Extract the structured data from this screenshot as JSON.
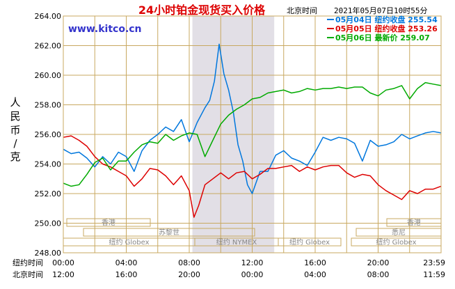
{
  "title": "24小时铂金现货买入价格",
  "header_timezone": "北京时间",
  "header_timestamp": "2021年05月07日10时55分",
  "watermark": "www.kitco.cn",
  "ylabel": "人民币/克",
  "row_label_ny": "纽约时间",
  "row_label_bj": "北京时间",
  "legend": [
    {
      "label": "05月04日 纽约收盘 255.54",
      "color": "#0077dd"
    },
    {
      "label": "05月05日 纽约收盘 253.26",
      "color": "#dd0000"
    },
    {
      "label": "05月06日    最新价 259.07",
      "color": "#00aa00"
    }
  ],
  "market_labels": {
    "hk_left": "香港",
    "paris": "苏黎世",
    "globex_left": "纽约 Globex",
    "nymex": "纽约 NYMEX",
    "globex_right": "纽约 Globex",
    "hk_right": "香港",
    "sydney": "悉尼",
    "globex_far_right": "纽约 Globex"
  },
  "colors": {
    "grid": "#c8a860",
    "shade": "#e2dfe6",
    "title": "#dd0000",
    "watermark": "#3333cc",
    "axis_text": "#000000"
  },
  "chart_data": {
    "type": "line",
    "ylim": [
      248,
      264
    ],
    "xlim_hours": [
      0,
      24
    ],
    "y_ticks": [
      "248.00",
      "250.00",
      "252.00",
      "254.00",
      "256.00",
      "258.00",
      "260.00",
      "262.00",
      "264.00"
    ],
    "x_ticks_ny": [
      "00:00",
      "04:00",
      "08:00",
      "12:00",
      "16:00",
      "20:00",
      "23:59"
    ],
    "x_ticks_bj": [
      "12:00",
      "16:00",
      "20:00",
      "00:00",
      "04:00",
      "08:00",
      "11:59"
    ],
    "x_tick_hours": [
      0,
      4,
      8,
      12,
      16,
      20,
      24
    ],
    "shaded_hours": [
      8.2,
      13.4
    ],
    "series": [
      {
        "name": "05月04日",
        "color": "#0077dd",
        "x": [
          0,
          0.5,
          1,
          1.5,
          2,
          2.5,
          3,
          3.5,
          4,
          4.5,
          5,
          5.5,
          6,
          6.5,
          7,
          7.5,
          8,
          8.5,
          9,
          9.3,
          9.6,
          9.9,
          10.2,
          10.5,
          10.8,
          11.1,
          11.4,
          11.7,
          12,
          12.5,
          13,
          13.5,
          14,
          14.5,
          15,
          15.5,
          16,
          16.5,
          17,
          17.5,
          18,
          18.5,
          19,
          19.5,
          20,
          20.5,
          21,
          21.5,
          22,
          22.5,
          23,
          23.5,
          24
        ],
        "y": [
          255.0,
          254.7,
          254.8,
          254.4,
          253.8,
          254.5,
          254.0,
          254.8,
          254.5,
          253.5,
          254.9,
          255.6,
          256.0,
          256.5,
          256.2,
          257.0,
          255.5,
          256.8,
          257.8,
          258.3,
          259.6,
          262.1,
          260.1,
          259.0,
          257.5,
          255.3,
          254.2,
          252.6,
          252.0,
          253.5,
          253.5,
          254.6,
          254.9,
          254.4,
          254.2,
          253.9,
          254.8,
          255.8,
          255.6,
          255.8,
          255.7,
          255.4,
          254.2,
          255.6,
          255.2,
          255.3,
          255.5,
          256.0,
          255.7,
          255.9,
          256.1,
          256.2,
          256.1
        ]
      },
      {
        "name": "05月05日",
        "color": "#dd0000",
        "x": [
          0,
          0.5,
          1,
          1.5,
          2,
          2.5,
          3,
          3.5,
          4,
          4.5,
          5,
          5.5,
          6,
          6.5,
          7,
          7.5,
          8,
          8.3,
          8.6,
          9,
          9.5,
          10,
          10.5,
          11,
          11.5,
          12,
          12.5,
          13,
          13.5,
          14,
          14.5,
          15,
          15.5,
          16,
          16.5,
          17,
          17.5,
          18,
          18.5,
          19,
          19.5,
          20,
          20.5,
          21,
          21.5,
          22,
          22.5,
          23,
          23.5,
          24
        ],
        "y": [
          255.8,
          255.9,
          255.6,
          255.2,
          254.5,
          254.0,
          253.8,
          253.5,
          253.2,
          252.5,
          253.0,
          253.7,
          253.6,
          253.2,
          252.6,
          253.2,
          252.2,
          250.4,
          251.2,
          252.6,
          253.0,
          253.4,
          253.0,
          253.4,
          253.5,
          253.0,
          253.3,
          253.7,
          253.7,
          253.8,
          253.9,
          253.5,
          253.8,
          253.6,
          253.8,
          253.9,
          253.9,
          253.4,
          253.1,
          253.3,
          253.2,
          252.6,
          252.2,
          251.9,
          251.6,
          252.2,
          252.0,
          252.3,
          252.3,
          252.5
        ]
      },
      {
        "name": "05月06日",
        "color": "#00aa00",
        "x": [
          0,
          0.5,
          1,
          1.5,
          2,
          2.5,
          3,
          3.5,
          4,
          4.5,
          5,
          5.5,
          6,
          6.5,
          7,
          7.5,
          8,
          8.5,
          9,
          9.5,
          10,
          10.5,
          11,
          11.5,
          12,
          12.5,
          13,
          13.5,
          14,
          14.5,
          15,
          15.5,
          16,
          16.5,
          17,
          17.5,
          18,
          18.5,
          19,
          19.5,
          20,
          20.5,
          21,
          21.5,
          22,
          22.5,
          23,
          23.5,
          24
        ],
        "y": [
          252.7,
          252.5,
          252.6,
          253.3,
          254.1,
          254.4,
          253.6,
          254.2,
          254.2,
          254.8,
          255.3,
          255.5,
          255.4,
          256.0,
          255.6,
          255.9,
          256.1,
          256.0,
          254.5,
          255.6,
          256.7,
          257.3,
          257.7,
          258.0,
          258.4,
          258.5,
          258.8,
          258.9,
          259.0,
          258.8,
          258.9,
          259.1,
          259.0,
          259.1,
          259.1,
          259.2,
          259.1,
          259.2,
          259.2,
          258.8,
          258.6,
          259.0,
          259.1,
          259.3,
          258.4,
          259.1,
          259.5,
          259.4,
          259.3
        ]
      }
    ]
  }
}
